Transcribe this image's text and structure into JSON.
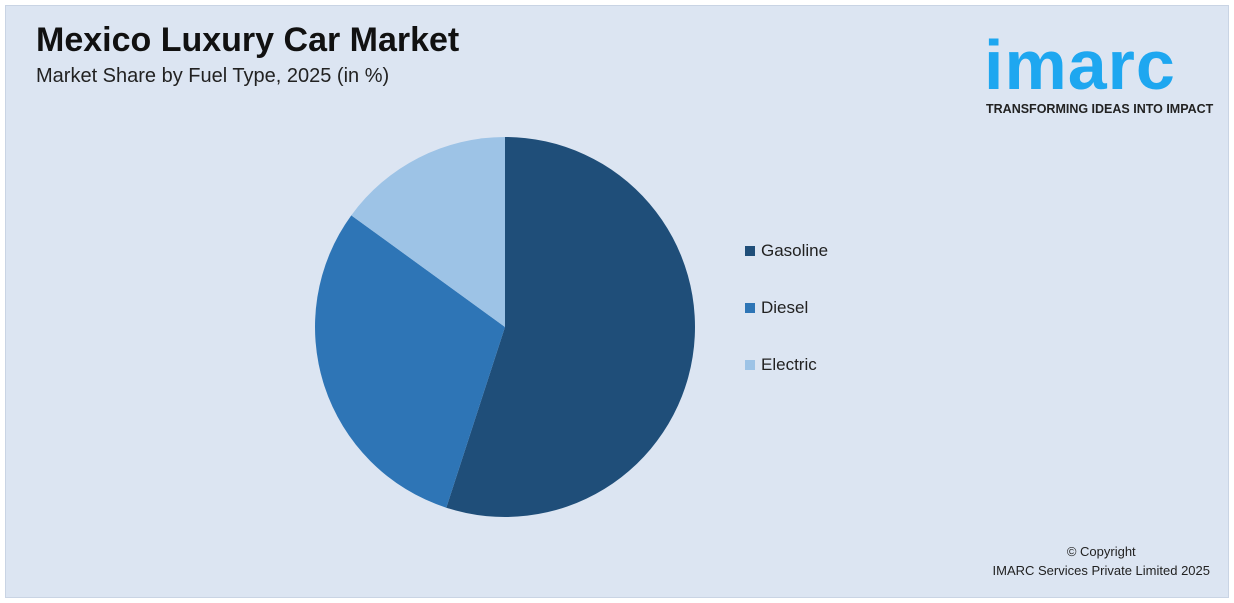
{
  "title": "Mexico Luxury Car Market",
  "subtitle": "Market Share by Fuel Type, 2025 (in %)",
  "logo": {
    "text": "imarc",
    "tagline": "TRANSFORMING IDEAS INTO IMPACT",
    "color": "#1ea7f0"
  },
  "chart_data": {
    "type": "pie",
    "categories": [
      "Gasoline",
      "Diesel",
      "Electric"
    ],
    "values": [
      55,
      30,
      15
    ],
    "colors": [
      "#1f4e79",
      "#2e75b6",
      "#9dc3e6"
    ],
    "start": "12 o'clock, clockwise",
    "legend_position": "right"
  },
  "legend": {
    "items": [
      "Gasoline",
      "Diesel",
      "Electric"
    ]
  },
  "copyright": {
    "line1": "© Copyright",
    "line2": "IMARC Services Private Limited 2025"
  }
}
